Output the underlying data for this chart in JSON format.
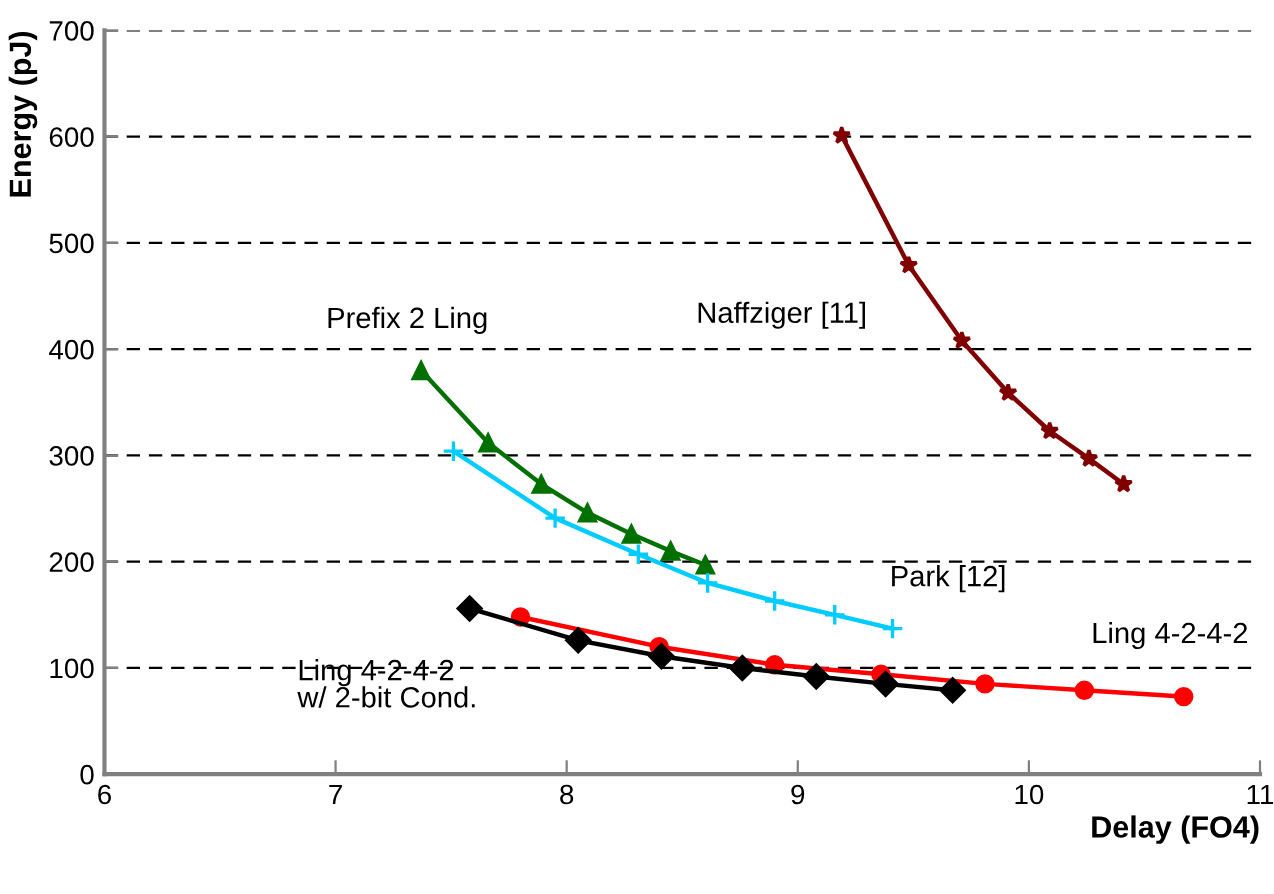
{
  "chart_data": {
    "type": "line",
    "xlabel": "Delay (FO4)",
    "ylabel": "Energy (pJ)",
    "xlim": [
      6,
      11
    ],
    "xticks": [
      6,
      7,
      8,
      9,
      10,
      11
    ],
    "ylim": [
      0,
      700
    ],
    "yticks": [
      0,
      100,
      200,
      300,
      400,
      500,
      600,
      700
    ],
    "grid": "y",
    "legend": false,
    "line_style": "solid",
    "series": [
      {
        "name": "Prefix 2 Ling",
        "color": "#007000",
        "marker": "triangle",
        "x": [
          7.37,
          7.66,
          7.89,
          8.09,
          8.28,
          8.45,
          8.6
        ],
        "values": [
          380,
          312,
          273,
          246,
          226,
          210,
          197
        ]
      },
      {
        "name": "Naffziger [11]",
        "color": "#800000",
        "marker": "star",
        "x": [
          9.19,
          9.48,
          9.71,
          9.91,
          10.09,
          10.26,
          10.41
        ],
        "values": [
          601,
          479,
          408,
          359,
          323,
          297,
          273
        ]
      },
      {
        "name": "Park [12]",
        "color": "#00ccff",
        "marker": "cross",
        "x": [
          7.51,
          7.95,
          8.31,
          8.61,
          8.9,
          9.16,
          9.41
        ],
        "values": [
          304,
          241,
          207,
          180,
          163,
          150,
          137
        ]
      },
      {
        "name": "Ling 4-2-4-2",
        "color": "#ff0000",
        "marker": "circle",
        "x": [
          7.8,
          8.4,
          8.9,
          9.36,
          9.81,
          10.24,
          10.67
        ],
        "values": [
          148,
          120,
          103,
          94,
          85,
          79,
          73
        ]
      },
      {
        "name": "Ling 4-2-4-2\nw/ 2-bit Cond.",
        "color": "#000000",
        "marker": "diamond",
        "x": [
          7.58,
          8.05,
          8.41,
          8.76,
          9.08,
          9.38,
          9.67
        ],
        "values": [
          156,
          126,
          111,
          100,
          92,
          85,
          79
        ]
      }
    ]
  }
}
